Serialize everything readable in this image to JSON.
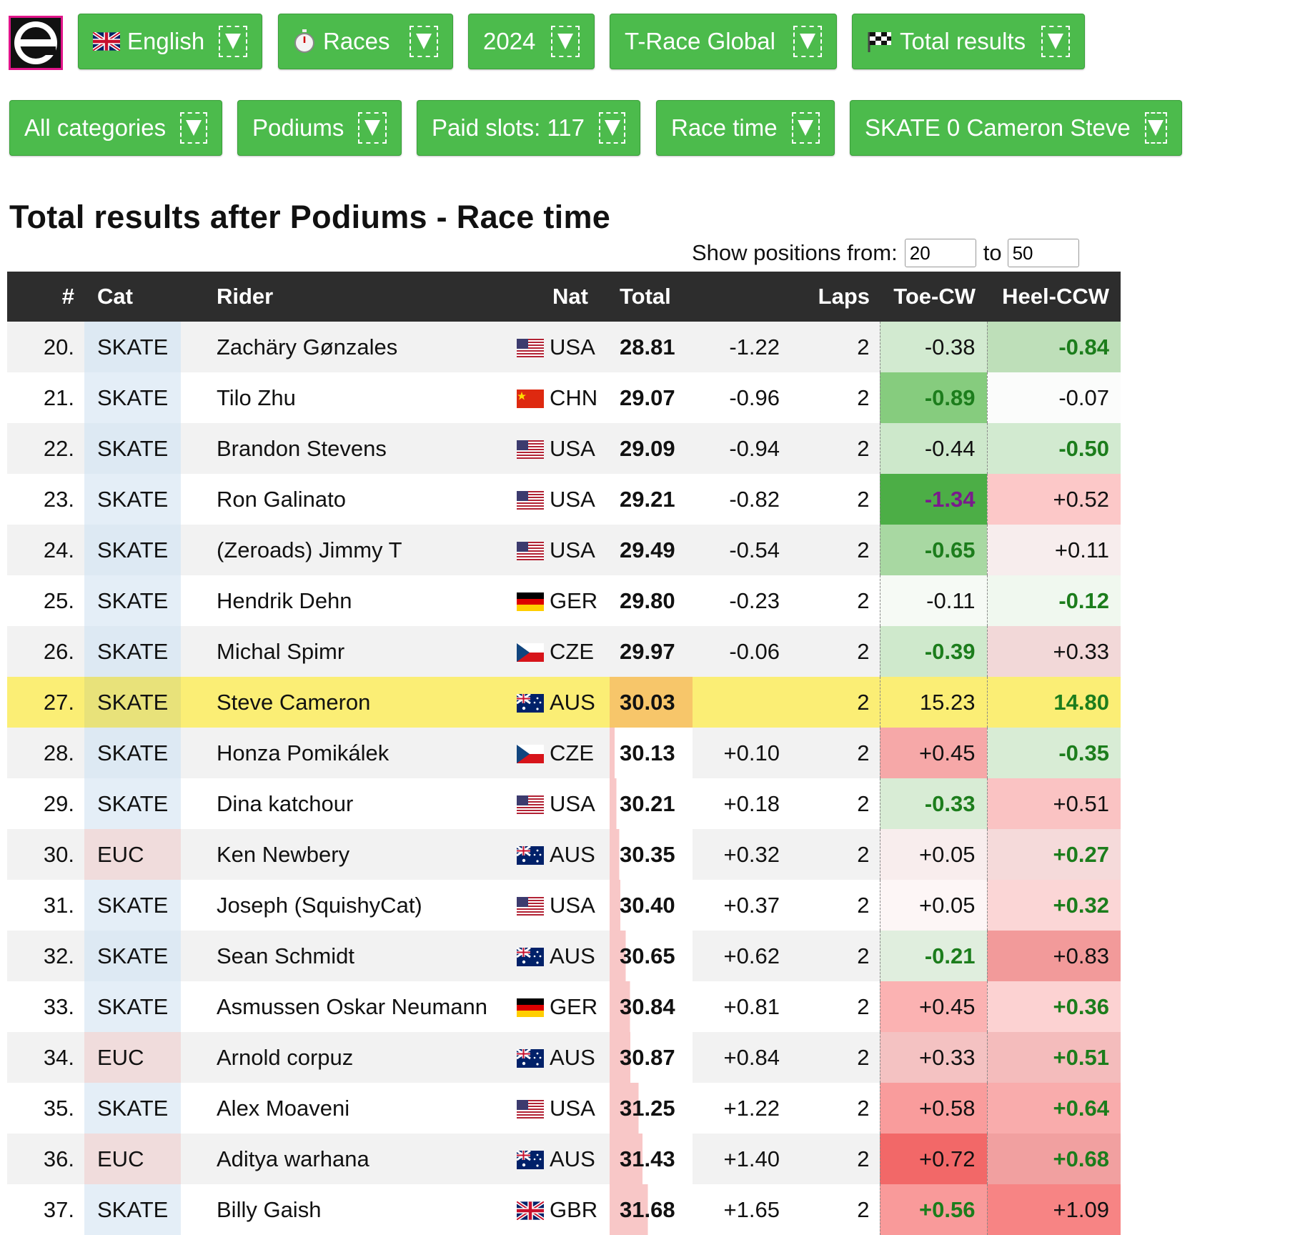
{
  "toolbar_row1": [
    {
      "label": "English",
      "icon": "uk-flag-icon"
    },
    {
      "label": "Races",
      "icon": "stopwatch-icon"
    },
    {
      "label": "2024",
      "icon": ""
    },
    {
      "label": "T-Race Global",
      "icon": ""
    },
    {
      "label": "Total results",
      "icon": "checkered-flag-icon"
    }
  ],
  "toolbar_row2": [
    {
      "label": "All categories"
    },
    {
      "label": "Podiums"
    },
    {
      "label": "Paid slots: 117"
    },
    {
      "label": "Race time"
    },
    {
      "label": "SKATE 0 Cameron Steve"
    }
  ],
  "page_title": "Total results after Podiums - Race time",
  "show_positions": {
    "label": "Show positions from:",
    "to_label": "to",
    "from_value": "20",
    "to_value": "50"
  },
  "columns": {
    "pos": "#",
    "cat": "Cat",
    "rider": "Rider",
    "nat": "Nat",
    "total": "Total",
    "laps": "Laps",
    "toe": "Toe-CW",
    "heel": "Heel-CCW"
  },
  "colors": {
    "button_green": "#4cbb4c",
    "header_bg": "#2d2d2d",
    "highlight": "#fbee75",
    "good_text": "#1c7d1c",
    "best_text": "#7a1a8c"
  },
  "rows": [
    {
      "pos": "20.",
      "cat": "SKATE",
      "rider": "Zachäry Gønzales",
      "flag": "usa",
      "nat": "USA",
      "total": "28.81",
      "diff": "-1.22",
      "laps": "2",
      "toe": "-0.38",
      "heel": "-0.84",
      "toe_bg": "#d2ead0",
      "heel_bg": "#bedfb9",
      "toe_style": "",
      "heel_style": "green"
    },
    {
      "pos": "21.",
      "cat": "SKATE",
      "rider": "Tilo Zhu",
      "flag": "chn",
      "nat": "CHN",
      "total": "29.07",
      "diff": "-0.96",
      "laps": "2",
      "toe": "-0.89",
      "heel": "-0.07",
      "toe_bg": "#86cc7e",
      "heel_bg": "#fbfcfb",
      "toe_style": "green",
      "heel_style": ""
    },
    {
      "pos": "22.",
      "cat": "SKATE",
      "rider": "Brandon Stevens",
      "flag": "usa",
      "nat": "USA",
      "total": "29.09",
      "diff": "-0.94",
      "laps": "2",
      "toe": "-0.44",
      "heel": "-0.50",
      "toe_bg": "#cde8cb",
      "heel_bg": "#d2ead0",
      "toe_style": "",
      "heel_style": "green"
    },
    {
      "pos": "23.",
      "cat": "SKATE",
      "rider": "Ron Galinato",
      "flag": "usa",
      "nat": "USA",
      "total": "29.21",
      "diff": "-0.82",
      "laps": "2",
      "toe": "-1.34",
      "heel": "+0.52",
      "toe_bg": "#4cae46",
      "heel_bg": "#fcc8c8",
      "toe_style": "purple",
      "heel_style": ""
    },
    {
      "pos": "24.",
      "cat": "SKATE",
      "rider": "(Zeroads) Jimmy T",
      "flag": "usa",
      "nat": "USA",
      "total": "29.49",
      "diff": "-0.54",
      "laps": "2",
      "toe": "-0.65",
      "heel": "+0.11",
      "toe_bg": "#a8d8a2",
      "heel_bg": "#f7eded",
      "toe_style": "green",
      "heel_style": ""
    },
    {
      "pos": "25.",
      "cat": "SKATE",
      "rider": "Hendrik Dehn",
      "flag": "ger",
      "nat": "GER",
      "total": "29.80",
      "diff": "-0.23",
      "laps": "2",
      "toe": "-0.11",
      "heel": "-0.12",
      "toe_bg": "#f6faf5",
      "heel_bg": "#f0f8ef",
      "toe_style": "",
      "heel_style": "green"
    },
    {
      "pos": "26.",
      "cat": "SKATE",
      "rider": "Michal Spimr",
      "flag": "cze",
      "nat": "CZE",
      "total": "29.97",
      "diff": "-0.06",
      "laps": "2",
      "toe": "-0.39",
      "heel": "+0.33",
      "toe_bg": "#cfe9cc",
      "heel_bg": "#f2d8d8",
      "toe_style": "green",
      "heel_style": ""
    },
    {
      "pos": "27.",
      "cat": "SKATE",
      "rider": "Steve Cameron",
      "flag": "aus",
      "nat": "AUS",
      "total": "30.03",
      "diff": "",
      "laps": "2",
      "toe": "15.23",
      "heel": "14.80",
      "toe_bg": "#fbee75",
      "heel_bg": "#a8d560",
      "toe_style": "",
      "heel_style": "green"
    },
    {
      "pos": "28.",
      "cat": "SKATE",
      "rider": "Honza Pomikálek",
      "flag": "cze",
      "nat": "CZE",
      "total": "30.13",
      "diff": "+0.10",
      "laps": "2",
      "toe": "+0.45",
      "heel": "-0.35",
      "toe_bg": "#f6a8a8",
      "heel_bg": "#d8ecd5",
      "toe_style": "",
      "heel_style": "green"
    },
    {
      "pos": "29.",
      "cat": "SKATE",
      "rider": "Dina katchour",
      "flag": "usa",
      "nat": "USA",
      "total": "30.21",
      "diff": "+0.18",
      "laps": "2",
      "toe": "-0.33",
      "heel": "+0.51",
      "toe_bg": "#d8ecd5",
      "heel_bg": "#fac3c3",
      "toe_style": "green",
      "heel_style": ""
    },
    {
      "pos": "30.",
      "cat": "EUC",
      "rider": "Ken Newbery",
      "flag": "aus",
      "nat": "AUS",
      "total": "30.35",
      "diff": "+0.32",
      "laps": "2",
      "toe": "+0.05",
      "heel": "+0.27",
      "toe_bg": "#f8eded",
      "heel_bg": "#f5dada",
      "toe_style": "",
      "heel_style": "green"
    },
    {
      "pos": "31.",
      "cat": "SKATE",
      "rider": "Joseph (SquishyCat)",
      "flag": "usa",
      "nat": "USA",
      "total": "30.40",
      "diff": "+0.37",
      "laps": "2",
      "toe": "+0.05",
      "heel": "+0.32",
      "toe_bg": "#fdf6f6",
      "heel_bg": "#fbd6d6",
      "toe_style": "",
      "heel_style": "green"
    },
    {
      "pos": "32.",
      "cat": "SKATE",
      "rider": "Sean Schmidt",
      "flag": "aus",
      "nat": "AUS",
      "total": "30.65",
      "diff": "+0.62",
      "laps": "2",
      "toe": "-0.21",
      "heel": "+0.83",
      "toe_bg": "#e0eede",
      "heel_bg": "#f29a9a",
      "toe_style": "green",
      "heel_style": ""
    },
    {
      "pos": "33.",
      "cat": "SKATE",
      "rider": "Asmussen Oskar Neumann",
      "flag": "ger",
      "nat": "GER",
      "total": "30.84",
      "diff": "+0.81",
      "laps": "2",
      "toe": "+0.45",
      "heel": "+0.36",
      "toe_bg": "#fbb2b2",
      "heel_bg": "#fcd2d2",
      "toe_style": "",
      "heel_style": "green"
    },
    {
      "pos": "34.",
      "cat": "EUC",
      "rider": "Arnold corpuz",
      "flag": "aus",
      "nat": "AUS",
      "total": "30.87",
      "diff": "+0.84",
      "laps": "2",
      "toe": "+0.33",
      "heel": "+0.51",
      "toe_bg": "#f4c2c2",
      "heel_bg": "#f4bcbc",
      "toe_style": "",
      "heel_style": "green"
    },
    {
      "pos": "35.",
      "cat": "SKATE",
      "rider": "Alex Moaveni",
      "flag": "usa",
      "nat": "USA",
      "total": "31.25",
      "diff": "+1.22",
      "laps": "2",
      "toe": "+0.58",
      "heel": "+0.64",
      "toe_bg": "#f99c9c",
      "heel_bg": "#f9acac",
      "toe_style": "",
      "heel_style": "green"
    },
    {
      "pos": "36.",
      "cat": "EUC",
      "rider": "Aditya warhana",
      "flag": "aus",
      "nat": "AUS",
      "total": "31.43",
      "diff": "+1.40",
      "laps": "2",
      "toe": "+0.72",
      "heel": "+0.68",
      "toe_bg": "#f26868",
      "heel_bg": "#f1a0a0",
      "toe_style": "",
      "heel_style": "green"
    },
    {
      "pos": "37.",
      "cat": "SKATE",
      "rider": "Billy Gaish",
      "flag": "gbr",
      "nat": "GBR",
      "total": "31.68",
      "diff": "+1.65",
      "laps": "2",
      "toe": "+0.56",
      "heel": "+1.09",
      "toe_bg": "#f99a9a",
      "heel_bg": "#f78484",
      "toe_style": "green",
      "heel_style": ""
    }
  ]
}
